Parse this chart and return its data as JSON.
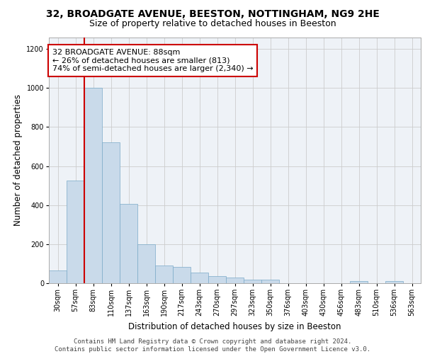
{
  "title": "32, BROADGATE AVENUE, BEESTON, NOTTINGHAM, NG9 2HE",
  "subtitle": "Size of property relative to detached houses in Beeston",
  "xlabel": "Distribution of detached houses by size in Beeston",
  "ylabel": "Number of detached properties",
  "bar_color": "#c9daea",
  "bar_edge_color": "#7aaac8",
  "categories": [
    "30sqm",
    "57sqm",
    "83sqm",
    "110sqm",
    "137sqm",
    "163sqm",
    "190sqm",
    "217sqm",
    "243sqm",
    "270sqm",
    "297sqm",
    "323sqm",
    "350sqm",
    "376sqm",
    "403sqm",
    "430sqm",
    "456sqm",
    "483sqm",
    "510sqm",
    "536sqm",
    "563sqm"
  ],
  "values": [
    65,
    525,
    1000,
    720,
    405,
    198,
    90,
    85,
    55,
    38,
    30,
    18,
    18,
    0,
    0,
    0,
    0,
    10,
    0,
    10,
    0
  ],
  "ylim": [
    0,
    1260
  ],
  "yticks": [
    0,
    200,
    400,
    600,
    800,
    1000,
    1200
  ],
  "property_line_bin": 2,
  "annotation_text": "32 BROADGATE AVENUE: 88sqm\n← 26% of detached houses are smaller (813)\n74% of semi-detached houses are larger (2,340) →",
  "annotation_box_color": "#ffffff",
  "annotation_box_edge_color": "#cc0000",
  "footer_text": "Contains HM Land Registry data © Crown copyright and database right 2024.\nContains public sector information licensed under the Open Government Licence v3.0.",
  "grid_color": "#cccccc",
  "background_color": "#eef2f7",
  "title_fontsize": 10,
  "subtitle_fontsize": 9,
  "axis_label_fontsize": 8.5,
  "tick_fontsize": 7,
  "footer_fontsize": 6.5,
  "annotation_fontsize": 8
}
